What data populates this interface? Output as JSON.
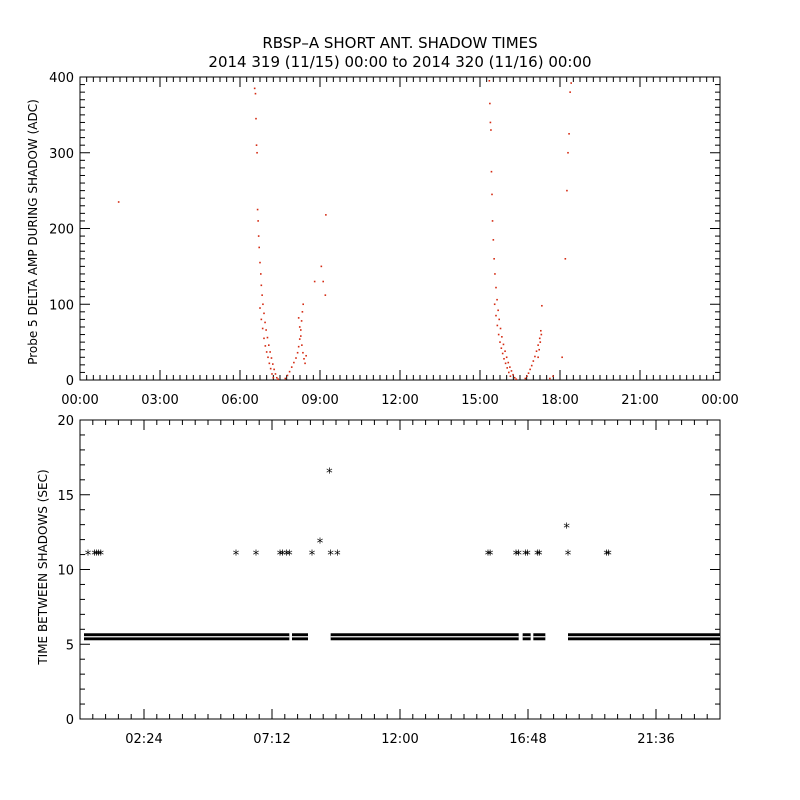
{
  "title_line1": "RBSP–A SHORT ANT. SHADOW TIMES",
  "title_line2": "2014 319 (11/15) 00:00 to 2014 320 (11/16) 00:00",
  "colors": {
    "points_top": "#d42a12",
    "points_bottom": "#000000",
    "axes": "#000000",
    "background": "#ffffff"
  },
  "chart_data": [
    {
      "type": "scatter",
      "title": "RBSP–A SHORT ANT. SHADOW TIMES",
      "subtitle": "2014 319 (11/15) 00:00 to 2014 320 (11/16) 00:00",
      "xlabel": "",
      "ylabel": "Probe 5 DELTA AMP DURING SHADOW (ADC)",
      "xlim": [
        0,
        24
      ],
      "ylim": [
        0,
        400
      ],
      "x_tick_values": [
        0,
        3,
        6,
        9,
        12,
        15,
        18,
        21,
        24
      ],
      "x_tick_labels": [
        "00:00",
        "03:00",
        "06:00",
        "09:00",
        "12:00",
        "15:00",
        "18:00",
        "21:00",
        "00:00"
      ],
      "y_tick_values": [
        0,
        100,
        200,
        300,
        400
      ],
      "y_tick_labels": [
        "0",
        "100",
        "200",
        "300",
        "400"
      ],
      "marker": "dot",
      "series": [
        {
          "points": [
            [
              1.45,
              235
            ],
            [
              6.55,
              385
            ],
            [
              6.58,
              378
            ],
            [
              6.6,
              345
            ],
            [
              6.62,
              310
            ],
            [
              6.64,
              300
            ],
            [
              6.66,
              225
            ],
            [
              6.68,
              210
            ],
            [
              6.7,
              190
            ],
            [
              6.72,
              175
            ],
            [
              6.75,
              155
            ],
            [
              6.78,
              140
            ],
            [
              6.8,
              125
            ],
            [
              6.83,
              112
            ],
            [
              6.86,
              100
            ],
            [
              6.9,
              88
            ],
            [
              6.94,
              76
            ],
            [
              6.98,
              66
            ],
            [
              7.03,
              56
            ],
            [
              7.08,
              46
            ],
            [
              7.13,
              37
            ],
            [
              7.18,
              29
            ],
            [
              7.23,
              21
            ],
            [
              7.28,
              14
            ],
            [
              7.33,
              8
            ],
            [
              7.38,
              3
            ],
            [
              7.43,
              1
            ],
            [
              6.75,
              95
            ],
            [
              6.8,
              80
            ],
            [
              6.85,
              68
            ],
            [
              6.9,
              55
            ],
            [
              6.95,
              45
            ],
            [
              7.0,
              37
            ],
            [
              7.05,
              30
            ],
            [
              7.1,
              22
            ],
            [
              7.15,
              15
            ],
            [
              7.2,
              8
            ],
            [
              7.25,
              3
            ],
            [
              7.7,
              2
            ],
            [
              7.78,
              6
            ],
            [
              7.86,
              11
            ],
            [
              7.94,
              17
            ],
            [
              8.02,
              23
            ],
            [
              8.1,
              29
            ],
            [
              8.16,
              36
            ],
            [
              8.2,
              44
            ],
            [
              8.24,
              54
            ],
            [
              8.28,
              66
            ],
            [
              8.31,
              78
            ],
            [
              8.34,
              90
            ],
            [
              8.37,
              100
            ],
            [
              8.2,
              82
            ],
            [
              8.24,
              70
            ],
            [
              8.28,
              58
            ],
            [
              8.32,
              46
            ],
            [
              8.36,
              36
            ],
            [
              8.4,
              28
            ],
            [
              8.44,
              22
            ],
            [
              8.48,
              32
            ],
            [
              8.8,
              130
            ],
            [
              9.05,
              150
            ],
            [
              9.12,
              130
            ],
            [
              9.2,
              112
            ],
            [
              9.22,
              218
            ],
            [
              15.35,
              395
            ],
            [
              15.37,
              365
            ],
            [
              15.39,
              340
            ],
            [
              15.41,
              330
            ],
            [
              15.43,
              275
            ],
            [
              15.45,
              245
            ],
            [
              15.47,
              210
            ],
            [
              15.5,
              185
            ],
            [
              15.53,
              160
            ],
            [
              15.56,
              140
            ],
            [
              15.6,
              122
            ],
            [
              15.64,
              106
            ],
            [
              15.68,
              92
            ],
            [
              15.72,
              80
            ],
            [
              15.77,
              68
            ],
            [
              15.82,
              57
            ],
            [
              15.88,
              47
            ],
            [
              15.94,
              38
            ],
            [
              16.0,
              30
            ],
            [
              16.06,
              23
            ],
            [
              16.12,
              17
            ],
            [
              16.18,
              12
            ],
            [
              16.24,
              7
            ],
            [
              16.3,
              3
            ],
            [
              16.36,
              1
            ],
            [
              15.55,
              100
            ],
            [
              15.6,
              85
            ],
            [
              15.65,
              72
            ],
            [
              15.7,
              60
            ],
            [
              15.75,
              50
            ],
            [
              15.8,
              42
            ],
            [
              15.85,
              35
            ],
            [
              15.9,
              28
            ],
            [
              15.96,
              22
            ],
            [
              16.02,
              16
            ],
            [
              16.08,
              10
            ],
            [
              16.14,
              5
            ],
            [
              16.7,
              2
            ],
            [
              16.76,
              5
            ],
            [
              16.82,
              9
            ],
            [
              16.88,
              14
            ],
            [
              16.94,
              19
            ],
            [
              17.0,
              25
            ],
            [
              17.06,
              31
            ],
            [
              17.12,
              38
            ],
            [
              17.18,
              46
            ],
            [
              17.24,
              55
            ],
            [
              17.28,
              65
            ],
            [
              17.32,
              98
            ],
            [
              17.18,
              30
            ],
            [
              17.22,
              40
            ],
            [
              17.26,
              50
            ],
            [
              17.3,
              60
            ],
            [
              17.62,
              2
            ],
            [
              17.74,
              5
            ],
            [
              18.08,
              30
            ],
            [
              18.2,
              160
            ],
            [
              18.26,
              250
            ],
            [
              18.3,
              300
            ],
            [
              18.34,
              325
            ],
            [
              18.38,
              380
            ],
            [
              18.42,
              392
            ]
          ]
        }
      ]
    },
    {
      "type": "scatter",
      "title": "",
      "xlabel": "",
      "ylabel": "TIME BETWEEN SHADOWS (SEC)",
      "xlim": [
        0,
        24
      ],
      "ylim": [
        0,
        20
      ],
      "x_tick_values": [
        2.4,
        7.2,
        12,
        16.8,
        21.6
      ],
      "x_tick_labels": [
        "02:24",
        "07:12",
        "12:00",
        "16:48",
        "21:36"
      ],
      "y_tick_values": [
        0,
        5,
        10,
        15,
        20
      ],
      "y_tick_labels": [
        "0",
        "5",
        "10",
        "15",
        "20"
      ],
      "marker": "asterisk",
      "baseline_bands": [
        {
          "x_start": 0.15,
          "x_end": 7.85,
          "value": 5.5
        },
        {
          "x_start": 7.95,
          "x_end": 8.55,
          "value": 5.5
        },
        {
          "x_start": 9.4,
          "x_end": 16.45,
          "value": 5.5
        },
        {
          "x_start": 16.6,
          "x_end": 16.9,
          "value": 5.5
        },
        {
          "x_start": 17.0,
          "x_end": 17.45,
          "value": 5.5
        },
        {
          "x_start": 18.3,
          "x_end": 24.0,
          "value": 5.5
        }
      ],
      "outliers": [
        [
          0.3,
          11
        ],
        [
          0.55,
          11
        ],
        [
          0.62,
          11
        ],
        [
          0.7,
          11
        ],
        [
          0.78,
          11
        ],
        [
          5.85,
          11
        ],
        [
          6.6,
          11
        ],
        [
          7.5,
          11
        ],
        [
          7.6,
          11
        ],
        [
          7.75,
          11
        ],
        [
          7.85,
          11
        ],
        [
          8.7,
          11
        ],
        [
          9.0,
          11.8
        ],
        [
          9.35,
          16.5
        ],
        [
          9.4,
          11
        ],
        [
          9.65,
          11
        ],
        [
          15.3,
          11
        ],
        [
          15.38,
          11
        ],
        [
          16.35,
          11
        ],
        [
          16.45,
          11
        ],
        [
          16.7,
          11
        ],
        [
          16.78,
          11
        ],
        [
          17.15,
          11
        ],
        [
          17.22,
          11
        ],
        [
          18.25,
          12.8
        ],
        [
          18.3,
          11
        ],
        [
          19.75,
          11
        ],
        [
          19.82,
          11
        ]
      ]
    }
  ]
}
